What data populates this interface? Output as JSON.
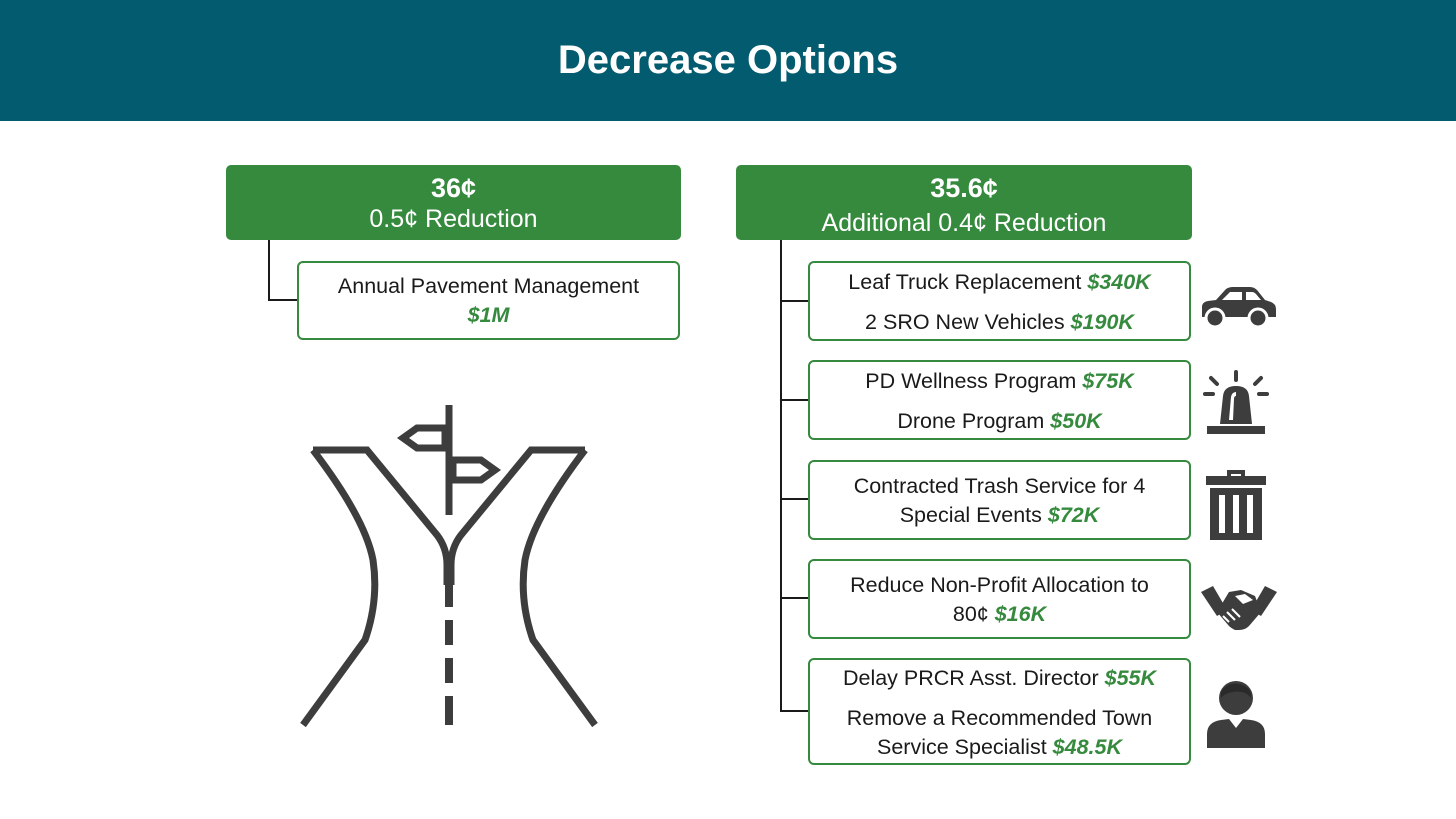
{
  "page": {
    "title": "Decrease Options"
  },
  "left_option": {
    "rate": "36¢",
    "subtitle": "0.5¢ Reduction",
    "items": [
      {
        "label": "Annual Pavement Management",
        "amount": "$1M"
      }
    ]
  },
  "right_option": {
    "rate": "35.6¢",
    "subtitle": "Additional 0.4¢ Reduction",
    "groups": [
      {
        "icon": "car-icon",
        "lines": [
          {
            "label": "Leaf Truck Replacement",
            "amount": "$340K"
          },
          {
            "label": "2 SRO New Vehicles",
            "amount": "$190K"
          }
        ]
      },
      {
        "icon": "police-siren-icon",
        "lines": [
          {
            "label": "PD Wellness Program",
            "amount": "$75K"
          },
          {
            "label": "Drone Program",
            "amount": "$50K"
          }
        ]
      },
      {
        "icon": "trash-can-icon",
        "lines": [
          {
            "label": "Contracted Trash Service for 4"
          },
          {
            "label": "Special Events",
            "amount": "$72K"
          }
        ]
      },
      {
        "icon": "handshake-icon",
        "lines": [
          {
            "label": "Reduce Non-Profit Allocation to"
          },
          {
            "label": "80¢",
            "amount": "$16K"
          }
        ]
      },
      {
        "icon": "person-icon",
        "lines": [
          {
            "label": "Delay PRCR Asst. Director",
            "amount": "$55K"
          },
          {
            "label": "Remove a Recommended Town"
          },
          {
            "label": "Service Specialist",
            "amount": "$48.5K"
          }
        ]
      }
    ]
  },
  "illustration": {
    "icon": "diverging-road-signpost-icon"
  }
}
